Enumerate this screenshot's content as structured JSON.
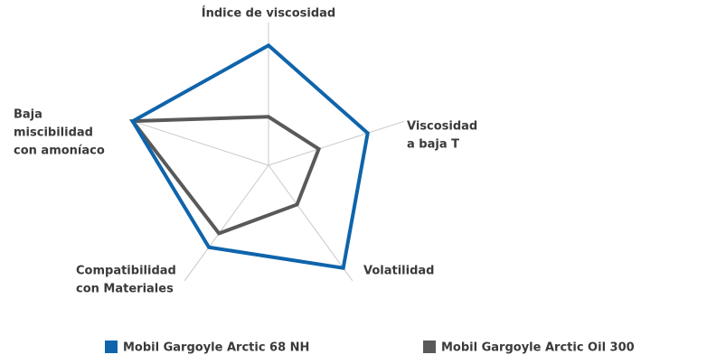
{
  "chart_data": {
    "type": "radar",
    "categories": [
      [
        "Índice de viscosidad"
      ],
      [
        "Viscosidad",
        "a baja T"
      ],
      [
        "Volatilidad"
      ],
      [
        "Compatibilidad",
        "con Materiales"
      ],
      [
        "Baja",
        "miscibilidad",
        "con amoníaco"
      ]
    ],
    "rlim": [
      0,
      10
    ],
    "series": [
      {
        "name": "Mobil Gargoyle Arctic 68 NH",
        "color": "#0f64ab",
        "values": [
          8.4,
          7.3,
          8.9,
          7.1,
          10
        ]
      },
      {
        "name": "Mobil Gargoyle Arctic Oil 300",
        "color": "#595959",
        "values": [
          3.4,
          3.7,
          3.4,
          5.9,
          10
        ]
      }
    ],
    "legend": "bottom"
  }
}
